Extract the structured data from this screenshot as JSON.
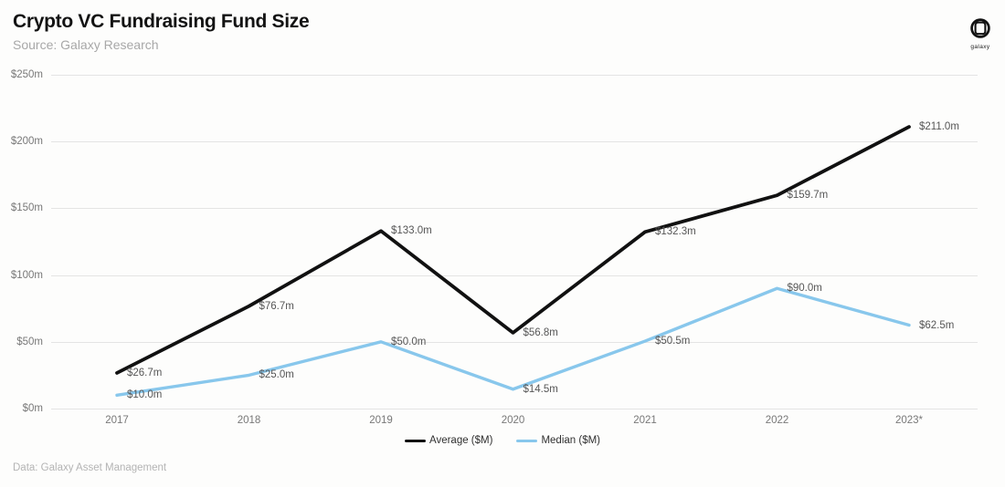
{
  "header": {
    "title": "Crypto VC Fundraising Fund Size",
    "subtitle": "Source: Galaxy Research",
    "logo_text": "galaxy"
  },
  "footer": {
    "credit": "Data: Galaxy Asset Management"
  },
  "colors": {
    "average": "#111111",
    "median": "#88c7ec",
    "grid": "#e4e4e4",
    "tick_label": "#787878",
    "data_label": "#565656"
  },
  "chart_data": {
    "type": "line",
    "title": "Crypto VC Fundraising Fund Size",
    "categories": [
      "2017",
      "2018",
      "2019",
      "2020",
      "2021",
      "2022",
      "2023*"
    ],
    "series": [
      {
        "name": "Average ($M)",
        "color_key": "average",
        "values": [
          26.7,
          76.7,
          133.0,
          56.8,
          132.3,
          159.7,
          211.0
        ],
        "point_labels": [
          "$26.7m",
          "$76.7m",
          "$133.0m",
          "$56.8m",
          "$132.3m",
          "$159.7m",
          "$211.0m"
        ]
      },
      {
        "name": "Median ($M)",
        "color_key": "median",
        "values": [
          10.0,
          25.0,
          50.0,
          14.5,
          50.5,
          90.0,
          62.5
        ],
        "point_labels": [
          "$10.0m",
          "$25.0m",
          "$50.0m",
          "$14.5m",
          "$50.5m",
          "$90.0m",
          "$62.5m"
        ]
      }
    ],
    "y_ticks": [
      {
        "label": "$0m",
        "value": 0
      },
      {
        "label": "$50m",
        "value": 50
      },
      {
        "label": "$100m",
        "value": 100
      },
      {
        "label": "$150m",
        "value": 150
      },
      {
        "label": "$200m",
        "value": 200
      },
      {
        "label": "$250m",
        "value": 250
      }
    ],
    "ylim": [
      0,
      250
    ],
    "xlabel": "",
    "ylabel": "",
    "grid": "horizontal",
    "legend_position": "bottom-center"
  }
}
